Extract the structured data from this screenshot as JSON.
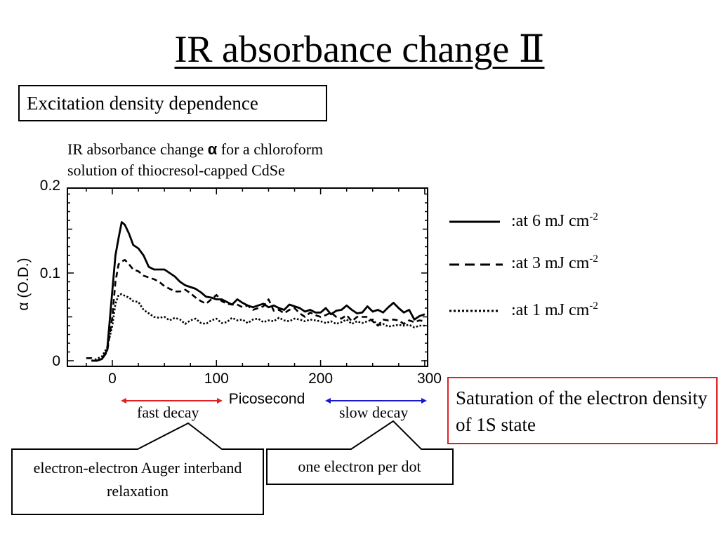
{
  "title": "IR absorbance change  Ⅱ",
  "section_label": "Excitation density dependence",
  "caption": {
    "line1_before": "IR absorbance change ",
    "symbol": "α",
    "line1_after": " for a chloroform",
    "line2": "solution of thiocresol-capped CdSe"
  },
  "legend": [
    {
      "style": "solid",
      "text": ":at 6 mJ cm",
      "sup": "-2"
    },
    {
      "style": "dashed",
      "text": ":at 3 mJ cm",
      "sup": "-2"
    },
    {
      "style": "dotted",
      "text": ":at 1 mJ cm",
      "sup": "-2"
    }
  ],
  "saturation_note": "Saturation of the electron density of 1S state",
  "decay_labels": {
    "fast": "fast decay",
    "slow": "slow decay"
  },
  "callouts": {
    "fast": "electron-electron Auger interband relaxation",
    "slow": "one electron per dot"
  },
  "colors": {
    "fast_arrow": "#e02020",
    "slow_arrow": "#1a1acc",
    "highlight_border": "#e02020"
  },
  "chart_data": {
    "type": "line",
    "xlabel": "Picosecond",
    "ylabel": "α (O.D.)",
    "xlim": [
      -30,
      300
    ],
    "ylim": [
      -0.005,
      0.2
    ],
    "xticks": [
      0,
      100,
      200,
      300
    ],
    "xtick_labels": [
      "0",
      "100",
      "200",
      "300"
    ],
    "yticks": [
      0,
      0.1,
      0.2
    ],
    "ytick_labels": [
      "0",
      "0.1",
      "0.2"
    ],
    "grid": false,
    "series": [
      {
        "legend": ":at 6 mJ cm-2",
        "style": "solid",
        "x": [
          -20,
          -15,
          -10,
          -5,
          0,
          3,
          6,
          9,
          12,
          16,
          20,
          25,
          30,
          35,
          40,
          45,
          50,
          55,
          60,
          65,
          70,
          75,
          80,
          85,
          90,
          95,
          100,
          105,
          110,
          115,
          120,
          125,
          130,
          135,
          140,
          145,
          150,
          155,
          160,
          165,
          170,
          175,
          180,
          185,
          190,
          195,
          200,
          205,
          210,
          215,
          220,
          225,
          230,
          235,
          240,
          245,
          250,
          255,
          260,
          265,
          270,
          275,
          280,
          285,
          290,
          295,
          300
        ],
        "y": [
          0.0,
          0.0,
          0.002,
          0.012,
          0.08,
          0.12,
          0.14,
          0.158,
          0.155,
          0.145,
          0.132,
          0.128,
          0.12,
          0.107,
          0.104,
          0.104,
          0.104,
          0.1,
          0.096,
          0.09,
          0.086,
          0.084,
          0.082,
          0.078,
          0.073,
          0.072,
          0.07,
          0.07,
          0.067,
          0.064,
          0.07,
          0.066,
          0.063,
          0.061,
          0.063,
          0.065,
          0.061,
          0.063,
          0.06,
          0.058,
          0.064,
          0.062,
          0.06,
          0.056,
          0.058,
          0.055,
          0.055,
          0.06,
          0.053,
          0.057,
          0.058,
          0.063,
          0.058,
          0.054,
          0.055,
          0.062,
          0.056,
          0.058,
          0.055,
          0.061,
          0.066,
          0.06,
          0.055,
          0.058,
          0.047,
          0.051,
          0.053
        ]
      },
      {
        "legend": ":at 3 mJ cm-2",
        "style": "dashed",
        "x": [
          -25,
          -20,
          -15,
          -10,
          -5,
          0,
          3,
          6,
          9,
          12,
          16,
          20,
          25,
          30,
          35,
          40,
          45,
          50,
          55,
          60,
          65,
          70,
          75,
          80,
          85,
          90,
          95,
          100,
          105,
          110,
          115,
          120,
          125,
          130,
          135,
          140,
          145,
          150,
          155,
          160,
          165,
          170,
          175,
          180,
          185,
          190,
          195,
          200,
          205,
          210,
          215,
          220,
          225,
          230,
          235,
          240,
          245,
          250,
          255,
          260,
          265,
          270,
          275,
          280,
          285,
          290,
          295,
          300
        ],
        "y": [
          0.003,
          0.003,
          0.0,
          0.002,
          0.01,
          0.05,
          0.09,
          0.11,
          0.113,
          0.115,
          0.11,
          0.104,
          0.102,
          0.097,
          0.095,
          0.093,
          0.09,
          0.085,
          0.082,
          0.079,
          0.079,
          0.081,
          0.077,
          0.072,
          0.068,
          0.065,
          0.07,
          0.075,
          0.068,
          0.065,
          0.064,
          0.064,
          0.061,
          0.063,
          0.058,
          0.06,
          0.062,
          0.07,
          0.057,
          0.058,
          0.054,
          0.058,
          0.06,
          0.054,
          0.05,
          0.055,
          0.052,
          0.05,
          0.052,
          0.055,
          0.05,
          0.048,
          0.052,
          0.045,
          0.05,
          0.05,
          0.05,
          0.045,
          0.04,
          0.047,
          0.046,
          0.047,
          0.046,
          0.042,
          0.046,
          0.044,
          0.046,
          0.045
        ]
      },
      {
        "legend": ":at 1 mJ cm-2",
        "style": "dotted",
        "x": [
          -20,
          -15,
          -10,
          -5,
          0,
          3,
          6,
          9,
          12,
          16,
          20,
          25,
          30,
          35,
          40,
          45,
          50,
          55,
          60,
          65,
          70,
          75,
          80,
          85,
          90,
          95,
          100,
          105,
          110,
          115,
          120,
          125,
          130,
          135,
          140,
          145,
          150,
          155,
          160,
          165,
          170,
          175,
          180,
          185,
          190,
          195,
          200,
          205,
          210,
          215,
          220,
          225,
          230,
          235,
          240,
          245,
          250,
          255,
          260,
          265,
          270,
          275,
          280,
          285,
          290,
          295,
          300
        ],
        "y": [
          0.0,
          0.002,
          0.005,
          0.015,
          0.04,
          0.065,
          0.075,
          0.076,
          0.074,
          0.072,
          0.068,
          0.067,
          0.058,
          0.054,
          0.05,
          0.049,
          0.05,
          0.046,
          0.049,
          0.047,
          0.042,
          0.046,
          0.048,
          0.043,
          0.042,
          0.046,
          0.048,
          0.043,
          0.044,
          0.049,
          0.046,
          0.047,
          0.043,
          0.047,
          0.048,
          0.044,
          0.046,
          0.045,
          0.049,
          0.046,
          0.045,
          0.048,
          0.047,
          0.045,
          0.047,
          0.046,
          0.045,
          0.043,
          0.045,
          0.042,
          0.044,
          0.047,
          0.042,
          0.045,
          0.043,
          0.045,
          0.047,
          0.04,
          0.042,
          0.039,
          0.04,
          0.041,
          0.04,
          0.041,
          0.038,
          0.04,
          0.04
        ]
      }
    ]
  }
}
